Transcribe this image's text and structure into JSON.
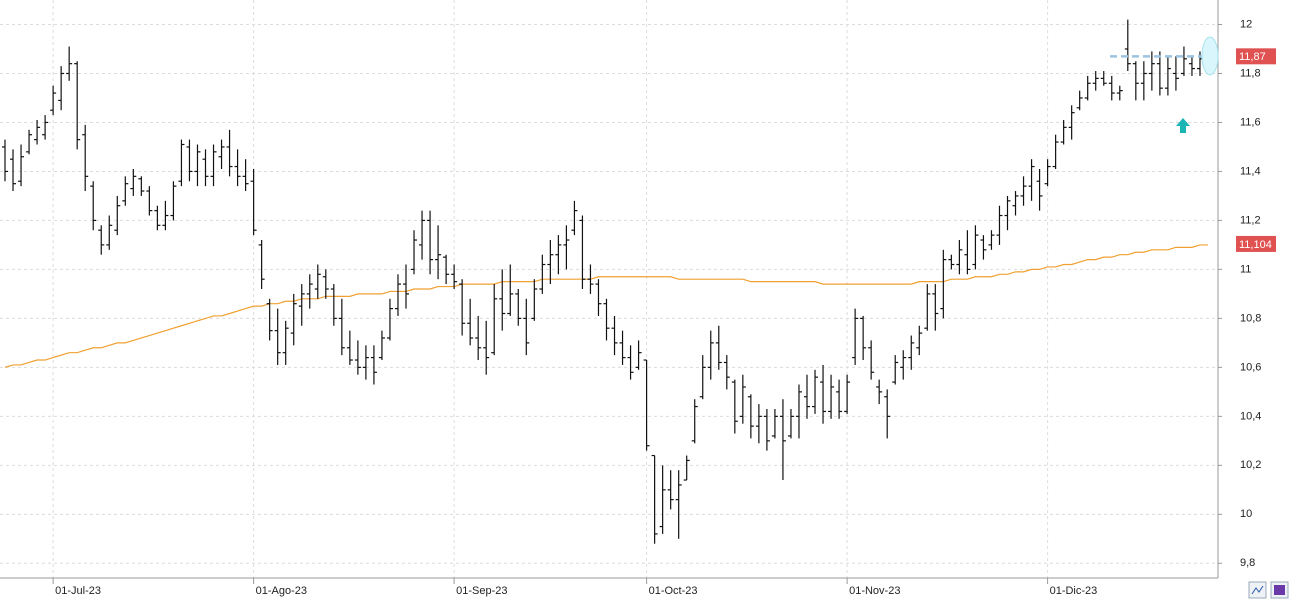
{
  "chart_data": {
    "type": "ohlc",
    "categories": [
      null,
      null,
      null,
      null,
      null,
      null,
      "01-Jul-23",
      null,
      null,
      null,
      null,
      null,
      null,
      null,
      null,
      null,
      null,
      null,
      null,
      null,
      null,
      null,
      null,
      null,
      null,
      null,
      null,
      null,
      null,
      null,
      null,
      "01-Ago-23",
      null,
      null,
      null,
      null,
      null,
      null,
      null,
      null,
      null,
      null,
      null,
      null,
      null,
      null,
      null,
      null,
      null,
      null,
      null,
      null,
      null,
      null,
      null,
      null,
      "01-Sep-23",
      null,
      null,
      null,
      null,
      null,
      null,
      null,
      null,
      null,
      null,
      null,
      null,
      null,
      null,
      null,
      null,
      null,
      null,
      null,
      null,
      null,
      null,
      null,
      "01-Oct-23",
      null,
      null,
      null,
      null,
      null,
      null,
      null,
      null,
      null,
      null,
      null,
      null,
      null,
      null,
      null,
      null,
      null,
      null,
      null,
      null,
      null,
      null,
      null,
      null,
      "01-Nov-23",
      null,
      null,
      null,
      null,
      null,
      null,
      null,
      null,
      null,
      null,
      null,
      null,
      null,
      null,
      null,
      null,
      null,
      null,
      null,
      null,
      null,
      null,
      null,
      null,
      "01-Dic-23",
      null,
      null,
      null,
      null,
      null,
      null,
      null,
      null,
      null,
      null,
      null,
      null,
      null,
      null,
      null,
      null,
      null,
      null,
      null,
      null
    ],
    "open": [
      11.5,
      11.45,
      11.36,
      11.48,
      11.53,
      11.55,
      11.65,
      11.69,
      11.8,
      11.84,
      11.55,
      11.34,
      11.16,
      11.1,
      11.16,
      11.28,
      11.33,
      11.37,
      11.32,
      11.24,
      11.18,
      11.22,
      11.36,
      11.5,
      11.4,
      11.45,
      11.38,
      11.46,
      11.5,
      11.42,
      11.38,
      11.36,
      11.1,
      10.86,
      10.75,
      10.66,
      10.74,
      10.85,
      10.9,
      10.92,
      10.97,
      10.92,
      10.8,
      10.68,
      10.63,
      10.6,
      10.64,
      10.64,
      10.72,
      10.84,
      10.94,
      11.0,
      11.1,
      11.2,
      11.04,
      11.05,
      10.98,
      10.94,
      10.78,
      10.72,
      10.68,
      10.66,
      10.88,
      10.82,
      10.9,
      10.8,
      10.8,
      10.92,
      11.02,
      11.06,
      11.1,
      11.16,
      11.2,
      10.96,
      10.94,
      10.86,
      10.76,
      10.7,
      10.64,
      10.6,
      10.63,
      10.24,
      9.95,
      10.1,
      10.06,
      10.14,
      10.3,
      10.48,
      10.6,
      10.7,
      10.62,
      10.54,
      10.4,
      10.48,
      10.36,
      10.4,
      10.32,
      10.4,
      10.32,
      10.4,
      10.48,
      10.44,
      10.54,
      10.42,
      10.5,
      10.42,
      10.64,
      10.8,
      10.68,
      10.52,
      10.48,
      10.54,
      10.6,
      10.64,
      10.68,
      10.76,
      10.9,
      10.84,
      11.04,
      11.02,
      11.06,
      11.02,
      11.12,
      11.1,
      11.14,
      11.22,
      11.26,
      11.3,
      11.34,
      11.36,
      11.35,
      11.42,
      11.52,
      11.58,
      11.66,
      11.7,
      11.76,
      11.78,
      11.76,
      11.72,
      11.9,
      11.84,
      11.76,
      11.8,
      11.84,
      11.74,
      11.8,
      11.8,
      11.84,
      11.82,
      11.86
    ],
    "high": [
      11.53,
      11.49,
      11.51,
      11.57,
      11.61,
      11.63,
      11.75,
      11.83,
      11.91,
      11.85,
      11.59,
      11.36,
      11.18,
      11.22,
      11.3,
      11.38,
      11.41,
      11.38,
      11.34,
      11.26,
      11.28,
      11.36,
      11.53,
      11.53,
      11.51,
      11.49,
      11.51,
      11.53,
      11.57,
      11.49,
      11.45,
      11.41,
      11.12,
      10.88,
      10.84,
      10.79,
      10.9,
      10.94,
      10.98,
      11.02,
      11.0,
      10.94,
      10.88,
      10.75,
      10.71,
      10.69,
      10.69,
      10.75,
      10.88,
      10.98,
      11.02,
      11.16,
      11.24,
      11.24,
      11.18,
      11.06,
      11.02,
      10.96,
      10.88,
      10.81,
      10.79,
      10.94,
      11.0,
      11.02,
      10.92,
      10.88,
      10.96,
      11.06,
      11.12,
      11.14,
      11.18,
      11.28,
      11.22,
      11.02,
      10.96,
      10.88,
      10.81,
      10.75,
      10.69,
      10.71,
      10.63,
      10.24,
      10.2,
      10.18,
      10.18,
      10.24,
      10.47,
      10.65,
      10.75,
      10.77,
      10.65,
      10.55,
      10.57,
      10.49,
      10.45,
      10.43,
      10.43,
      10.47,
      10.43,
      10.53,
      10.57,
      10.59,
      10.61,
      10.57,
      10.55,
      10.57,
      10.84,
      10.81,
      10.71,
      10.55,
      10.51,
      10.65,
      10.67,
      10.73,
      10.77,
      10.94,
      10.94,
      11.08,
      11.06,
      11.12,
      11.16,
      11.18,
      11.14,
      11.16,
      11.26,
      11.3,
      11.32,
      11.38,
      11.45,
      11.41,
      11.45,
      11.55,
      11.61,
      11.67,
      11.73,
      11.79,
      11.81,
      11.81,
      11.79,
      11.75,
      12.02,
      11.85,
      11.85,
      11.89,
      11.89,
      11.87,
      11.87,
      11.91,
      11.87,
      11.89,
      11.91
    ],
    "low": [
      11.36,
      11.32,
      11.34,
      11.47,
      11.51,
      11.53,
      11.63,
      11.65,
      11.77,
      11.49,
      11.32,
      11.16,
      11.06,
      11.08,
      11.14,
      11.26,
      11.3,
      11.3,
      11.22,
      11.16,
      11.16,
      11.2,
      11.34,
      11.36,
      11.34,
      11.34,
      11.34,
      11.41,
      11.38,
      11.34,
      11.32,
      11.14,
      10.92,
      10.71,
      10.61,
      10.61,
      10.69,
      10.77,
      10.84,
      10.88,
      10.88,
      10.77,
      10.65,
      10.61,
      10.57,
      10.55,
      10.53,
      10.63,
      10.71,
      10.81,
      10.84,
      10.98,
      11.04,
      10.98,
      10.96,
      10.94,
      10.92,
      10.73,
      10.69,
      10.63,
      10.57,
      10.65,
      10.75,
      10.81,
      10.77,
      10.65,
      10.79,
      10.9,
      10.94,
      10.98,
      11.0,
      11.14,
      10.92,
      10.9,
      10.81,
      10.71,
      10.65,
      10.61,
      10.55,
      10.59,
      10.26,
      9.88,
      9.92,
      10.02,
      9.9,
      10.14,
      10.29,
      10.47,
      10.55,
      10.59,
      10.51,
      10.33,
      10.37,
      10.31,
      10.29,
      10.26,
      10.31,
      10.14,
      10.31,
      10.31,
      10.39,
      10.41,
      10.37,
      10.39,
      10.39,
      10.41,
      10.61,
      10.63,
      10.55,
      10.45,
      10.31,
      10.53,
      10.55,
      10.59,
      10.65,
      10.75,
      10.75,
      10.8,
      11.0,
      10.98,
      10.98,
      11.0,
      11.04,
      11.08,
      11.1,
      11.16,
      11.22,
      11.26,
      11.28,
      11.24,
      11.34,
      11.41,
      11.51,
      11.53,
      11.65,
      11.69,
      11.73,
      11.75,
      11.69,
      11.69,
      11.81,
      11.69,
      11.69,
      11.73,
      11.71,
      11.71,
      11.73,
      11.79,
      11.79,
      11.79,
      11.85
    ],
    "close": [
      11.4,
      11.35,
      11.46,
      11.55,
      11.58,
      11.6,
      11.72,
      11.8,
      11.84,
      11.53,
      11.38,
      11.2,
      11.1,
      11.18,
      11.26,
      11.35,
      11.38,
      11.32,
      11.24,
      11.18,
      11.22,
      11.34,
      11.51,
      11.4,
      11.48,
      11.38,
      11.48,
      11.5,
      11.42,
      11.38,
      11.35,
      11.16,
      10.96,
      10.75,
      10.66,
      10.76,
      10.86,
      10.9,
      10.94,
      10.98,
      10.92,
      10.8,
      10.68,
      10.63,
      10.6,
      10.64,
      10.58,
      10.72,
      10.84,
      10.94,
      10.9,
      11.12,
      11.2,
      11.04,
      11.06,
      10.98,
      10.95,
      10.78,
      10.72,
      10.68,
      10.64,
      10.88,
      10.82,
      10.9,
      10.8,
      10.7,
      10.92,
      11.02,
      11.06,
      11.1,
      11.12,
      11.24,
      10.96,
      10.94,
      10.86,
      10.76,
      10.7,
      10.64,
      10.58,
      10.66,
      10.28,
      9.92,
      10.1,
      10.06,
      10.12,
      10.22,
      10.44,
      10.6,
      10.7,
      10.62,
      10.56,
      10.38,
      10.52,
      10.36,
      10.4,
      10.3,
      10.4,
      10.3,
      10.4,
      10.5,
      10.44,
      10.56,
      10.42,
      10.52,
      10.42,
      10.54,
      10.8,
      10.68,
      10.58,
      10.5,
      10.4,
      10.62,
      10.64,
      10.7,
      10.74,
      10.9,
      10.82,
      11.04,
      11.02,
      11.08,
      11.0,
      11.14,
      11.08,
      11.14,
      11.22,
      11.28,
      11.3,
      11.34,
      11.42,
      11.3,
      11.42,
      11.52,
      11.58,
      11.64,
      11.7,
      11.76,
      11.78,
      11.76,
      11.72,
      11.73,
      11.84,
      11.76,
      11.8,
      11.84,
      11.74,
      11.82,
      11.78,
      11.86,
      11.82,
      11.86,
      11.87
    ],
    "color": "#111111",
    "moving_average": {
      "color": "#f0a030",
      "values": [
        10.6,
        10.61,
        10.61,
        10.62,
        10.63,
        10.63,
        10.64,
        10.65,
        10.66,
        10.66,
        10.67,
        10.68,
        10.68,
        10.69,
        10.7,
        10.7,
        10.71,
        10.72,
        10.73,
        10.74,
        10.75,
        10.76,
        10.77,
        10.78,
        10.79,
        10.8,
        10.81,
        10.81,
        10.82,
        10.83,
        10.84,
        10.85,
        10.85,
        10.86,
        10.86,
        10.87,
        10.87,
        10.88,
        10.88,
        10.88,
        10.89,
        10.89,
        10.89,
        10.89,
        10.9,
        10.9,
        10.9,
        10.9,
        10.91,
        10.91,
        10.91,
        10.92,
        10.92,
        10.92,
        10.93,
        10.93,
        10.93,
        10.94,
        10.94,
        10.94,
        10.94,
        10.94,
        10.95,
        10.95,
        10.95,
        10.95,
        10.95,
        10.96,
        10.96,
        10.96,
        10.96,
        10.96,
        10.96,
        10.96,
        10.97,
        10.97,
        10.97,
        10.97,
        10.97,
        10.97,
        10.97,
        10.97,
        10.97,
        10.97,
        10.96,
        10.96,
        10.96,
        10.96,
        10.96,
        10.96,
        10.96,
        10.96,
        10.96,
        10.95,
        10.95,
        10.95,
        10.95,
        10.95,
        10.95,
        10.95,
        10.95,
        10.95,
        10.94,
        10.94,
        10.94,
        10.94,
        10.94,
        10.94,
        10.94,
        10.94,
        10.94,
        10.94,
        10.94,
        10.94,
        10.95,
        10.95,
        10.95,
        10.95,
        10.96,
        10.96,
        10.96,
        10.97,
        10.97,
        10.97,
        10.98,
        10.98,
        10.99,
        10.99,
        11.0,
        11.0,
        11.01,
        11.01,
        11.02,
        11.02,
        11.03,
        11.04,
        11.04,
        11.05,
        11.05,
        11.06,
        11.06,
        11.07,
        11.07,
        11.08,
        11.08,
        11.08,
        11.09,
        11.09,
        11.09,
        11.1,
        11.1
      ]
    },
    "price_labels": [
      {
        "value": 11.87,
        "label": "11,87",
        "color": "#e05252"
      },
      {
        "value": 11.104,
        "label": "11,104",
        "color": "#e05252"
      }
    ],
    "ylim": [
      9.74,
      12.1
    ],
    "yticks": [
      {
        "value": 9.8,
        "label": "9,8"
      },
      10,
      {
        "value": 10.2,
        "label": "10,2"
      },
      {
        "value": 10.4,
        "label": "10,4"
      },
      {
        "value": 10.6,
        "label": "10,6"
      },
      {
        "value": 10.8,
        "label": "10,8"
      },
      11,
      {
        "value": 11.2,
        "label": "11,2"
      },
      {
        "value": 11.4,
        "label": "11,4"
      },
      {
        "value": 11.6,
        "label": "11,6"
      },
      {
        "value": 11.8,
        "label": "11,8"
      },
      12
    ],
    "grid": true
  }
}
